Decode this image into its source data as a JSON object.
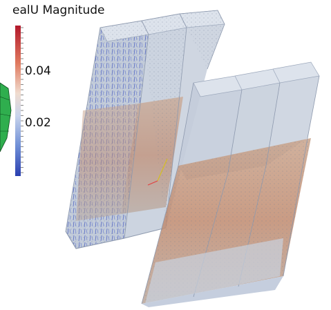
{
  "colorbar": {
    "title": "ealU Magnitude",
    "ticks": [
      0.04,
      0.02
    ]
  }
}
